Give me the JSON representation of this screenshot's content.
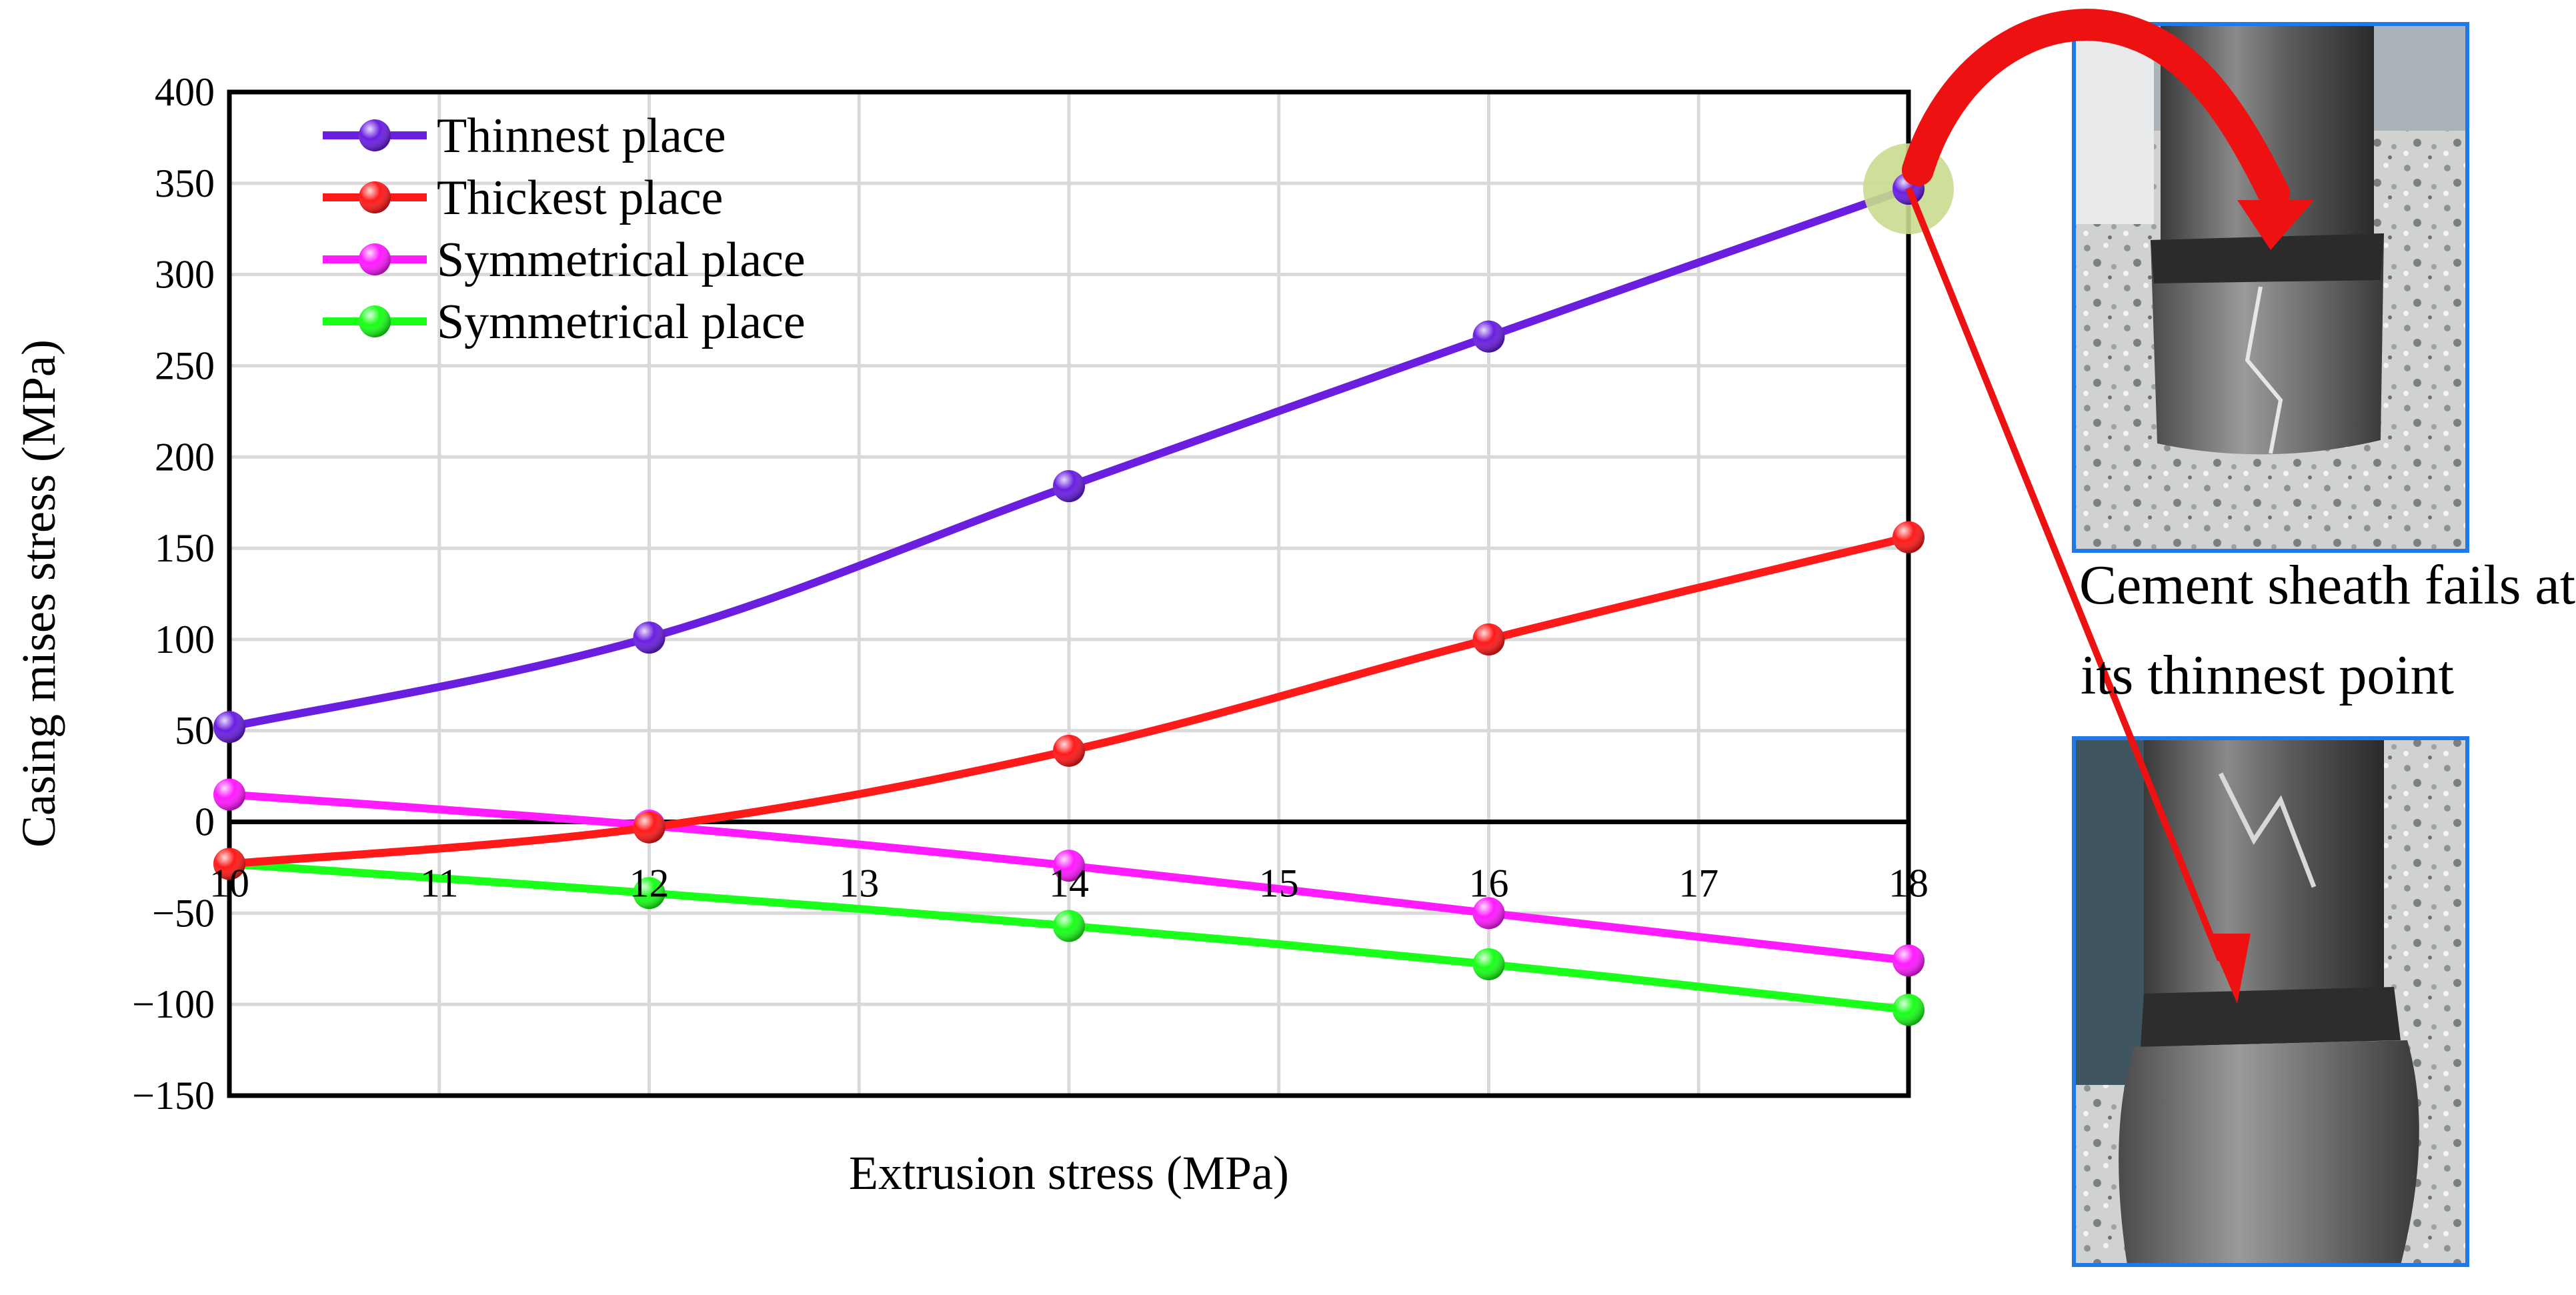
{
  "chart_data": {
    "type": "line",
    "title": "",
    "xlabel": "Extrusion stress (MPa)",
    "ylabel": "Casing mises stress (MPa)",
    "xlim": [
      10,
      18
    ],
    "ylim": [
      -150,
      400
    ],
    "x_ticks": [
      10,
      11,
      12,
      13,
      14,
      15,
      16,
      17,
      18
    ],
    "y_ticks": [
      -150,
      -100,
      -50,
      0,
      50,
      100,
      150,
      200,
      250,
      300,
      350,
      400
    ],
    "grid": true,
    "legend_position": "top-left",
    "x": [
      10,
      12,
      14,
      16,
      18
    ],
    "series": [
      {
        "name": "Thinnest place",
        "color": "#6a1fe0",
        "values": [
          52,
          101,
          184,
          266,
          347
        ]
      },
      {
        "name": "Thickest place",
        "color": "#ff1a1a",
        "values": [
          -23,
          -3,
          39,
          100,
          156
        ]
      },
      {
        "name": "Symmetrical place",
        "color": "#ff1aff",
        "values": [
          15,
          -2,
          -24,
          -50,
          -76
        ]
      },
      {
        "name": "Symmetrical place",
        "color": "#1aff1a",
        "values": [
          -23,
          -39,
          -57,
          -78,
          -103
        ]
      }
    ],
    "highlight": {
      "series": "Thinnest place",
      "x": 18,
      "color": "#c9dc8e"
    }
  },
  "annotation": {
    "caption_line1": "Cement sheath fails at",
    "caption_line2": "its thinnest point",
    "arrow_color": "#ee1111"
  },
  "photos": [
    {
      "name": "cement-sheath-photo-top",
      "subject": "casing with cracked cement sheath (top view)"
    },
    {
      "name": "cement-sheath-photo-bottom",
      "subject": "casing with failed cement sheath (close-up)"
    }
  ]
}
